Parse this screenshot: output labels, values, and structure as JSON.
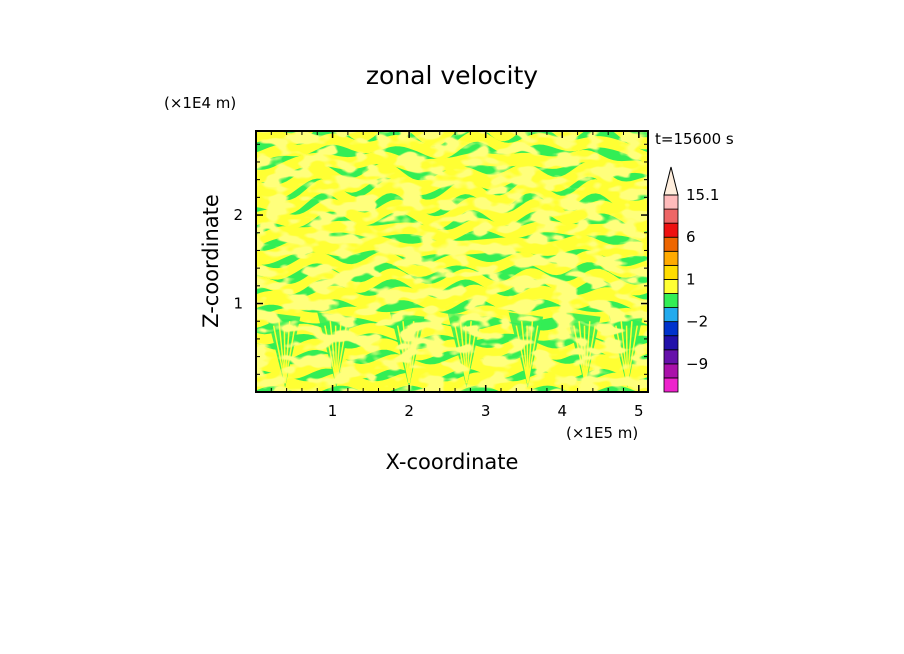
{
  "chart_data": {
    "type": "heatmap",
    "title": "zonal velocity",
    "xlabel": "X-coordinate",
    "ylabel": "Z-coordinate",
    "x_unit": "(×1E5 m)",
    "y_unit": "(×1E4 m)",
    "time_label": "t=15600 s",
    "xlim": [
      0,
      5.12
    ],
    "ylim": [
      0,
      2.95
    ],
    "x_ticks": [
      1,
      2,
      3,
      4,
      5
    ],
    "x_tick_labels": [
      "1",
      "2",
      "3",
      "4",
      "5"
    ],
    "y_ticks": [
      1,
      2
    ],
    "y_tick_labels": [
      "1",
      "2"
    ],
    "field": {
      "description_values": "dominant contour classes",
      "classes": [
        {
          "range": [
            -2,
            0
          ],
          "color": "#33ee55"
        },
        {
          "range": [
            0,
            1
          ],
          "color": "#ffff33"
        }
      ],
      "pattern_features": {
        "plume_centers_x": [
          0.38,
          1.05,
          2.0,
          2.75,
          3.55,
          4.3,
          4.85
        ],
        "wave_crest_x": [
          0.9,
          1.75,
          2.8,
          3.6,
          4.4
        ]
      }
    },
    "colorbar": {
      "levels": [
        -15.1,
        -12,
        -9,
        -6,
        -3,
        -2,
        -1,
        0,
        1,
        2,
        3,
        6,
        9,
        12,
        15.1
      ],
      "colors": [
        "#ee22cc",
        "#aa11aa",
        "#6611aa",
        "#2211aa",
        "#0033cc",
        "#22aaee",
        "#33ee55",
        "#ffff33",
        "#ffdd00",
        "#ffaa00",
        "#ee6600",
        "#ee1111",
        "#ee6666",
        "#ffbbbb"
      ],
      "extend_top": true,
      "extend_top_color": "#ffeedd",
      "labels": [
        {
          "value": 15.1,
          "text": "15.1"
        },
        {
          "value": 6,
          "text": "6"
        },
        {
          "value": 1,
          "text": "1"
        },
        {
          "value": -2,
          "text": "−2"
        },
        {
          "value": -9,
          "text": "−9"
        }
      ]
    }
  }
}
